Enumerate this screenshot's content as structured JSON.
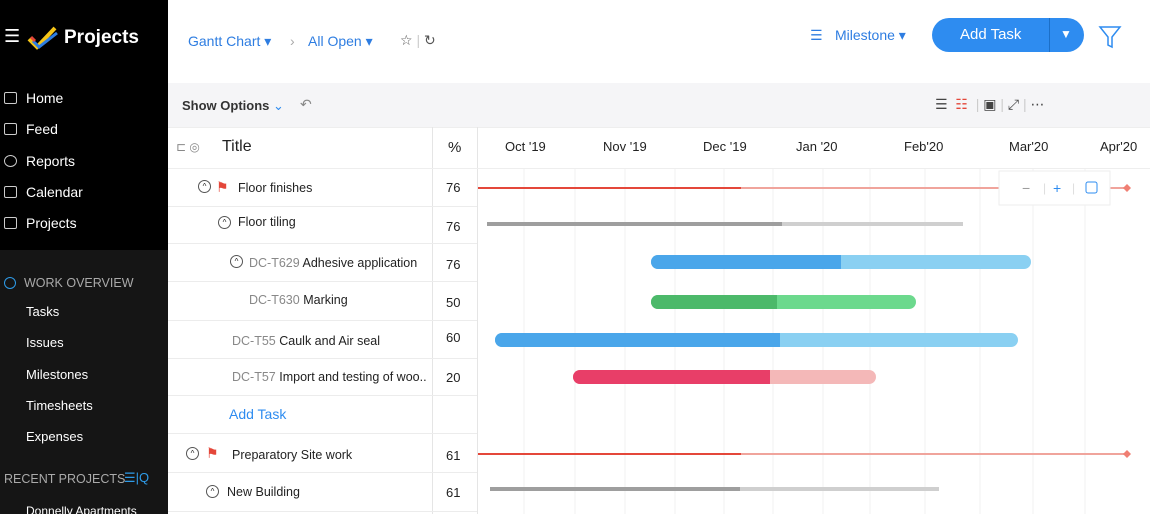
{
  "sidebar": {
    "app_title": "Projects",
    "menu": [
      "Home",
      "Feed",
      "Reports",
      "Calendar",
      "Projects"
    ],
    "work_overview": {
      "title": "WORK OVERVIEW",
      "items": [
        "Tasks",
        "Issues",
        "Milestones",
        "Timesheets",
        "Expenses"
      ]
    },
    "recent_projects": {
      "title": "RECENT PROJECTS",
      "items": [
        "Donnelly Apartments"
      ]
    }
  },
  "topbar": {
    "breadcrumb": [
      "Gantt Chart",
      "All Open"
    ],
    "group_by": "Milestone",
    "add_button": "Add Task"
  },
  "toolbar": {
    "show_options": "Show Options"
  },
  "table": {
    "columns": [
      "Title",
      "%"
    ],
    "rows": [
      {
        "name": "Floor finishes",
        "percent": 76
      },
      {
        "name": "Floor tiling",
        "percent": 76
      },
      {
        "id": "DC-T629",
        "name": "Adhesive application",
        "percent": 76
      },
      {
        "id": "DC-T630",
        "name": "Marking",
        "percent": 50
      },
      {
        "id": "DC-T55",
        "name": "Caulk and Air seal",
        "percent": 60
      },
      {
        "id": "DC-T57",
        "name": "Import and testing of woo..",
        "percent": 20
      },
      {
        "name": "Preparatory Site work",
        "percent": 61
      },
      {
        "name": "New Building",
        "percent": 61
      }
    ],
    "add_task": "Add Task"
  },
  "timeline": {
    "months": [
      "Oct '19",
      "Nov '19",
      "Dec '19",
      "Jan '20",
      "Feb'20",
      "Mar'20",
      "Apr'20"
    ]
  }
}
